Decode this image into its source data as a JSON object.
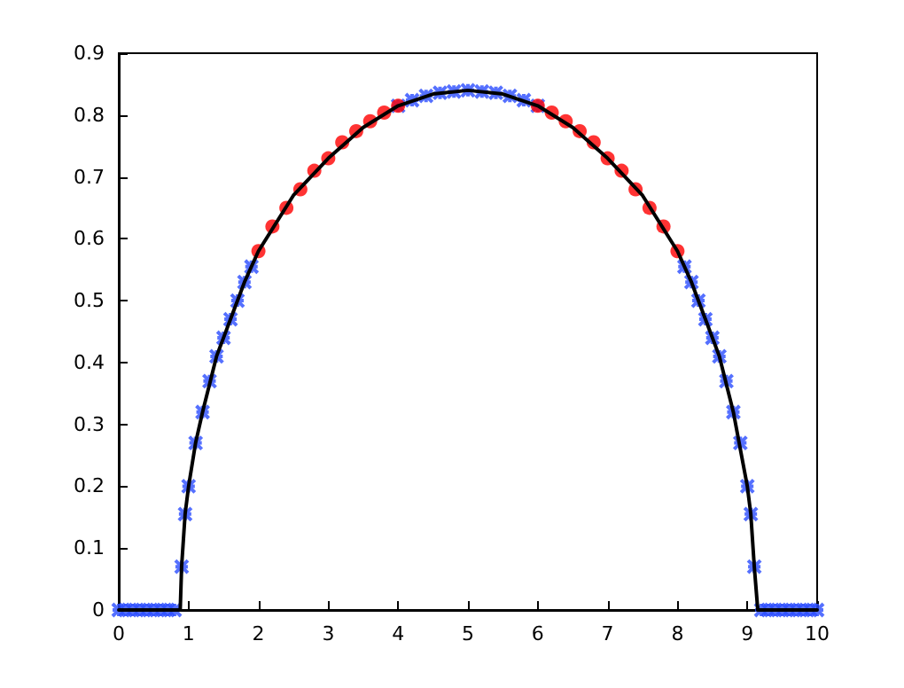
{
  "chart_data": {
    "type": "line",
    "xlim": [
      0,
      10
    ],
    "ylim": [
      0,
      0.9
    ],
    "xticks": [
      0,
      1,
      2,
      3,
      4,
      5,
      6,
      7,
      8,
      9,
      10
    ],
    "yticks": [
      0,
      0.1,
      0.2,
      0.3,
      0.4,
      0.5,
      0.6,
      0.7,
      0.8,
      0.9
    ],
    "grid": false,
    "series": [
      {
        "color": "#000000",
        "marker": "none",
        "line_style": "solid",
        "x": [
          0,
          0.88,
          0.9,
          0.95,
          1,
          1.1,
          1.2,
          1.4,
          1.6,
          1.8,
          2,
          2.5,
          3,
          3.5,
          4,
          4.5,
          5,
          5.5,
          6,
          6.5,
          7,
          7.5,
          8,
          8.2,
          8.4,
          8.6,
          8.8,
          9,
          9.05,
          9.1,
          9.15,
          10
        ],
        "values": [
          0,
          0,
          0.07,
          0.155,
          0.2,
          0.27,
          0.32,
          0.41,
          0.47,
          0.53,
          0.58,
          0.67,
          0.73,
          0.78,
          0.815,
          0.834,
          0.84,
          0.834,
          0.815,
          0.78,
          0.73,
          0.67,
          0.58,
          0.53,
          0.47,
          0.41,
          0.32,
          0.2,
          0.155,
          0.07,
          0,
          0
        ]
      },
      {
        "type": "scatter",
        "color": "#2b4cff",
        "marker": "cross",
        "x": [
          0,
          0.1,
          0.2,
          0.3,
          0.4,
          0.5,
          0.6,
          0.7,
          0.8,
          0.9,
          0.95,
          1,
          1.1,
          1.2,
          1.3,
          1.4,
          1.5,
          1.6,
          1.7,
          1.8,
          1.9,
          4,
          4.2,
          4.4,
          4.6,
          4.8,
          5,
          5.2,
          5.4,
          5.6,
          5.8,
          6,
          8.1,
          8.2,
          8.3,
          8.4,
          8.5,
          8.6,
          8.7,
          8.8,
          8.9,
          9,
          9.05,
          9.1,
          9.2,
          9.3,
          9.4,
          9.5,
          9.6,
          9.7,
          9.8,
          9.9,
          10
        ],
        "values": [
          0,
          0,
          0,
          0,
          0,
          0,
          0,
          0,
          0,
          0.07,
          0.155,
          0.2,
          0.27,
          0.32,
          0.37,
          0.41,
          0.44,
          0.47,
          0.5,
          0.53,
          0.555,
          0.815,
          0.824,
          0.831,
          0.836,
          0.838,
          0.84,
          0.838,
          0.836,
          0.831,
          0.824,
          0.815,
          0.555,
          0.53,
          0.5,
          0.47,
          0.44,
          0.41,
          0.37,
          0.32,
          0.27,
          0.2,
          0.155,
          0.07,
          0,
          0,
          0,
          0,
          0,
          0,
          0,
          0,
          0
        ]
      },
      {
        "type": "scatter",
        "color": "#ff0000",
        "marker": "circle",
        "x": [
          2,
          2.2,
          2.4,
          2.6,
          2.8,
          3,
          3.2,
          3.4,
          3.6,
          3.8,
          4,
          6,
          6.2,
          6.4,
          6.6,
          6.8,
          7,
          7.2,
          7.4,
          7.6,
          7.8,
          8
        ],
        "values": [
          0.58,
          0.62,
          0.65,
          0.68,
          0.71,
          0.73,
          0.756,
          0.774,
          0.79,
          0.804,
          0.815,
          0.815,
          0.804,
          0.79,
          0.774,
          0.756,
          0.73,
          0.71,
          0.68,
          0.65,
          0.62,
          0.58
        ]
      }
    ]
  }
}
